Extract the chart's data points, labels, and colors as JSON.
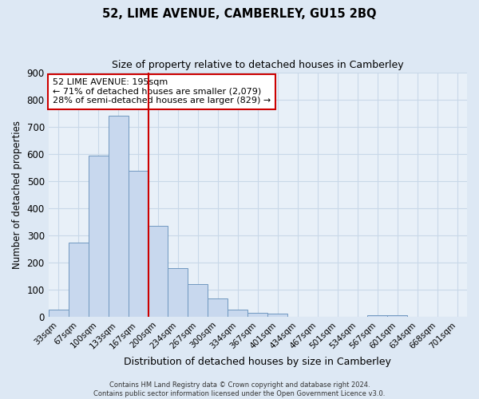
{
  "title": "52, LIME AVENUE, CAMBERLEY, GU15 2BQ",
  "subtitle": "Size of property relative to detached houses in Camberley",
  "xlabel": "Distribution of detached houses by size in Camberley",
  "ylabel": "Number of detached properties",
  "bar_labels": [
    "33sqm",
    "67sqm",
    "100sqm",
    "133sqm",
    "167sqm",
    "200sqm",
    "234sqm",
    "267sqm",
    "300sqm",
    "334sqm",
    "367sqm",
    "401sqm",
    "434sqm",
    "467sqm",
    "501sqm",
    "534sqm",
    "567sqm",
    "601sqm",
    "634sqm",
    "668sqm",
    "701sqm"
  ],
  "bar_values": [
    27,
    272,
    594,
    739,
    537,
    335,
    178,
    120,
    68,
    25,
    15,
    12,
    0,
    0,
    0,
    0,
    7,
    5,
    0,
    0,
    0
  ],
  "bar_color": "#c8d8ee",
  "bar_edge_color": "#7098c0",
  "vline_color": "#cc0000",
  "annotation_line1": "52 LIME AVENUE: 195sqm",
  "annotation_line2": "← 71% of detached houses are smaller (2,079)",
  "annotation_line3": "28% of semi-detached houses are larger (829) →",
  "annotation_box_color": "#ffffff",
  "annotation_box_edge": "#cc0000",
  "ylim": [
    0,
    900
  ],
  "yticks": [
    0,
    100,
    200,
    300,
    400,
    500,
    600,
    700,
    800,
    900
  ],
  "grid_color": "#c8d8e8",
  "background_color": "#dde8f4",
  "plot_bg_color": "#e8f0f8",
  "footer_line1": "Contains HM Land Registry data © Crown copyright and database right 2024.",
  "footer_line2": "Contains public sector information licensed under the Open Government Licence v3.0."
}
